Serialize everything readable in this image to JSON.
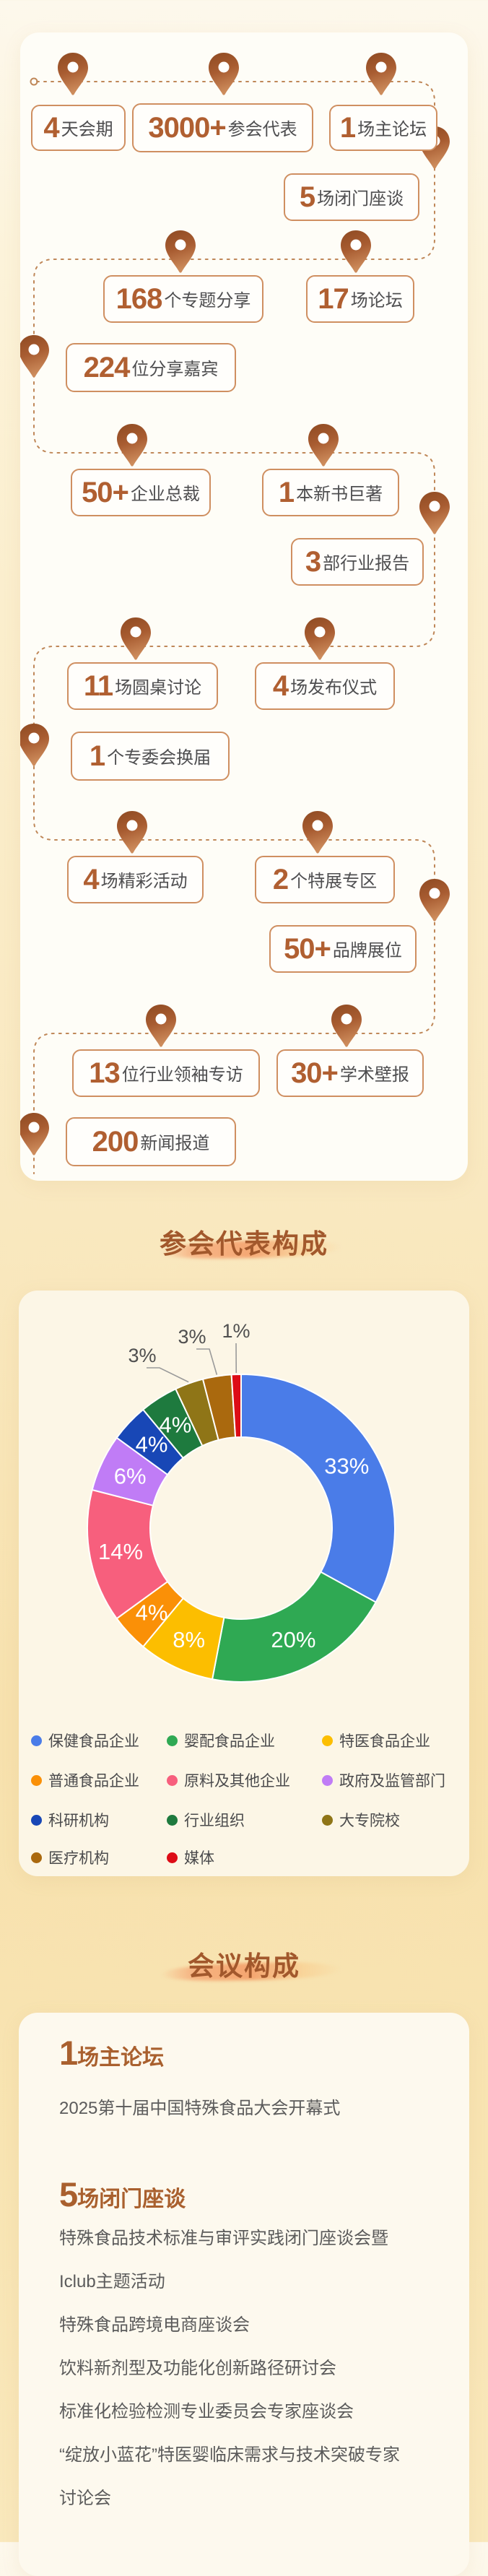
{
  "colors": {
    "accent_brown": "#b05f31",
    "title_brown": "#a2582c",
    "box_border": "#cf8f61",
    "dash_line": "#bf8758",
    "text_gray": "#4e4e50"
  },
  "timeline": {
    "stats": [
      {
        "num": "4",
        "label": "天会期"
      },
      {
        "num": "3000+",
        "label": "参会代表"
      },
      {
        "num": "1",
        "label": "场主论坛"
      },
      {
        "num": "5",
        "label": "场闭门座谈"
      },
      {
        "num": "168",
        "label": "个专题分享"
      },
      {
        "num": "17",
        "label": "场论坛"
      },
      {
        "num": "224",
        "label": "位分享嘉宾"
      },
      {
        "num": "50+",
        "label": "企业总裁"
      },
      {
        "num": "1",
        "label": "本新书巨著"
      },
      {
        "num": "3",
        "label": "部行业报告"
      },
      {
        "num": "11",
        "label": "场圆桌讨论"
      },
      {
        "num": "4",
        "label": "场发布仪式"
      },
      {
        "num": "1",
        "label": "个专委会换届"
      },
      {
        "num": "4",
        "label": "场精彩活动"
      },
      {
        "num": "2",
        "label": "个特展专区"
      },
      {
        "num": "50+",
        "label": "品牌展位"
      },
      {
        "num": "13",
        "label": "位行业领袖专访"
      },
      {
        "num": "30+",
        "label": "学术壁报"
      },
      {
        "num": "200",
        "label": "新闻报道"
      }
    ]
  },
  "sections": {
    "participants": "参会代表构成",
    "meetings": "会议构成"
  },
  "chart_data": {
    "type": "pie",
    "subtype": "donut",
    "title": "参会代表构成",
    "label_format": "percent",
    "legend_position": "bottom",
    "series": [
      {
        "name": "保健食品企业",
        "value": 33,
        "color": "#4a7ce8"
      },
      {
        "name": "婴配食品企业",
        "value": 20,
        "color": "#2fa953"
      },
      {
        "name": "特医食品企业",
        "value": 8,
        "color": "#fcbe00"
      },
      {
        "name": "普通食品企业",
        "value": 4,
        "color": "#fa9007"
      },
      {
        "name": "原料及其他企业",
        "value": 14,
        "color": "#f75f7d"
      },
      {
        "name": "政府及监管部门",
        "value": 6,
        "color": "#c07cf6"
      },
      {
        "name": "科研机构",
        "value": 4,
        "color": "#1847b6"
      },
      {
        "name": "行业组织",
        "value": 4,
        "color": "#1e7a3e"
      },
      {
        "name": "大专院校",
        "value": 3,
        "color": "#8f7517"
      },
      {
        "name": "医疗机构",
        "value": 3,
        "color": "#aa690e"
      },
      {
        "name": "媒体",
        "value": 1,
        "color": "#dd0c16"
      }
    ]
  },
  "meetings": {
    "main_forum": {
      "num": "1",
      "title": "场主论坛",
      "items": [
        "2025第十届中国特殊食品大会开幕式"
      ]
    },
    "closed_door": {
      "num": "5",
      "title": "场闭门座谈",
      "items": [
        "特殊食品技术标准与审评实践闭门座谈会暨Iclub主题活动",
        "特殊食品跨境电商座谈会",
        "饮料新剂型及功能化创新路径研讨会",
        "标准化检验检测专业委员会专家座谈会",
        "“绽放小蓝花”特医婴临床需求与技术突破专家讨论会"
      ]
    }
  }
}
